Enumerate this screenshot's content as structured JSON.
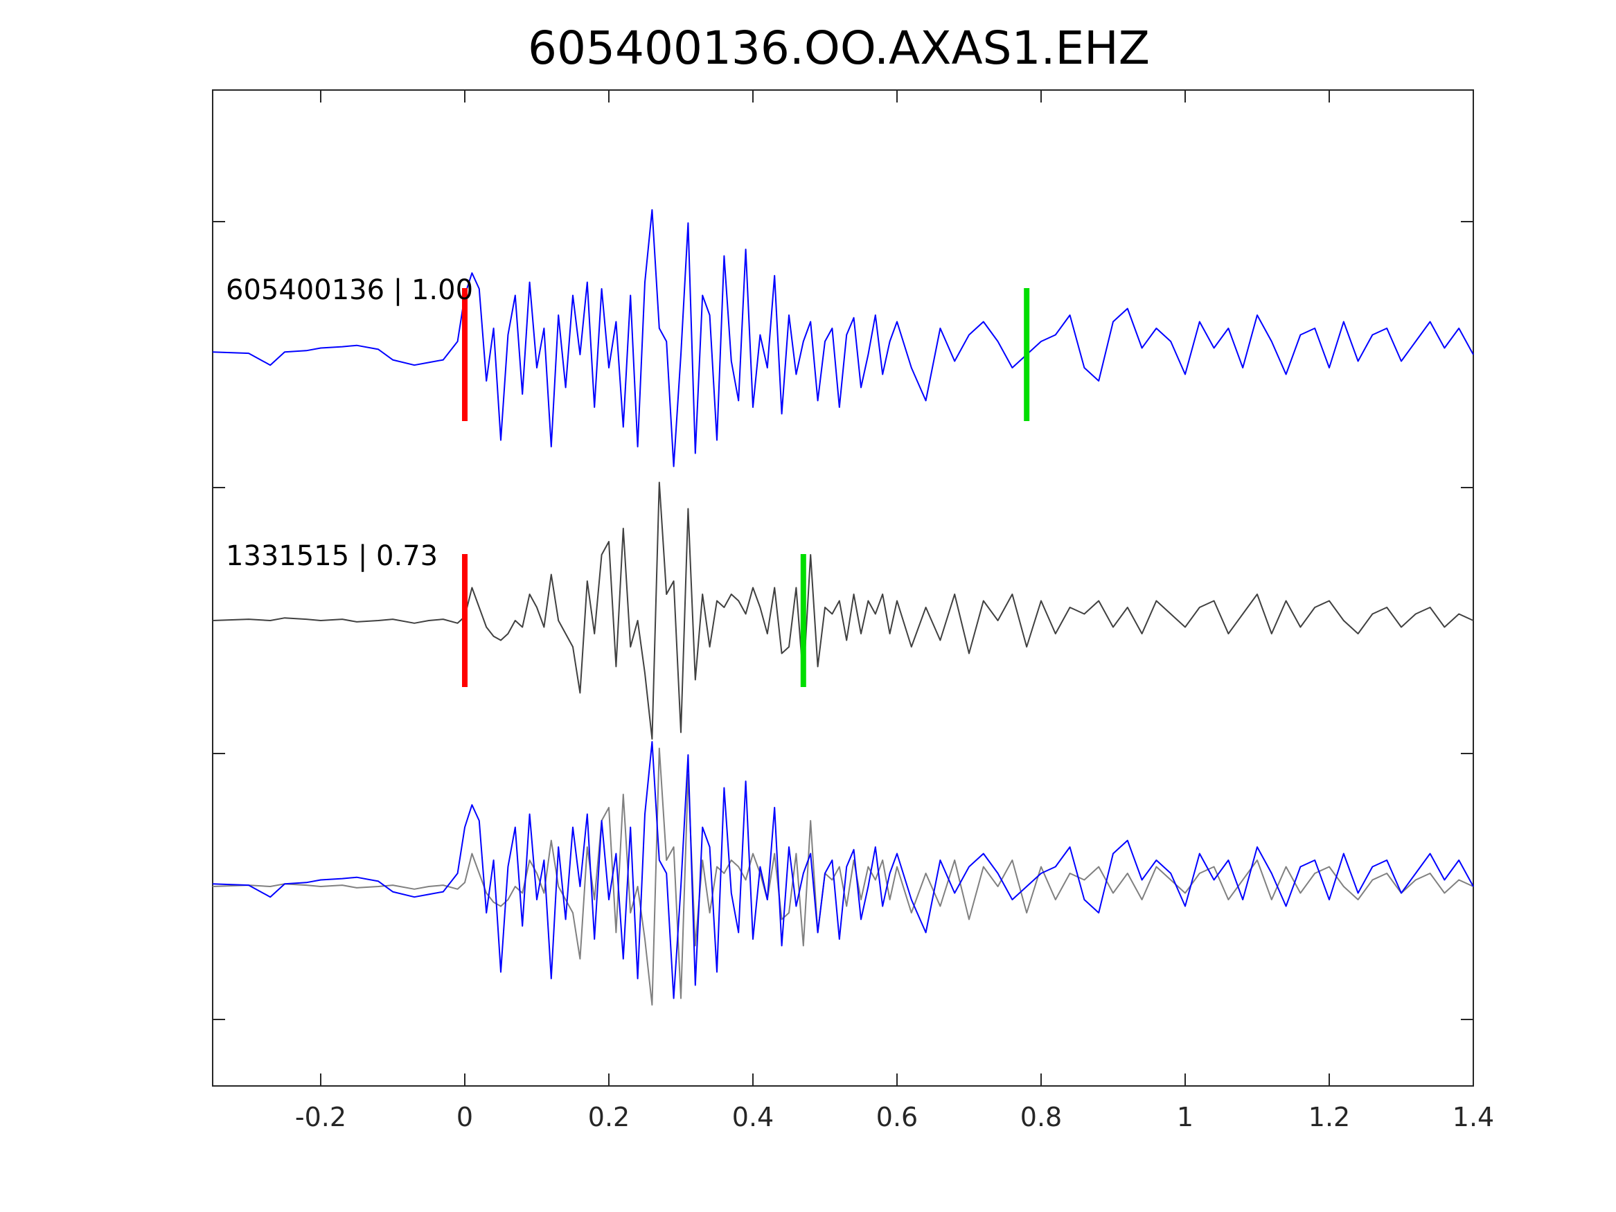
{
  "chart_data": {
    "type": "line",
    "title": "605400136.OO.AXAS1.EHZ",
    "xlabel": "",
    "ylabel": "",
    "xlim": [
      -0.35,
      1.4
    ],
    "xticks": [
      -0.2,
      0,
      0.2,
      0.4,
      0.6,
      0.8,
      1,
      1.2,
      1.4
    ],
    "xticklabels": [
      "-0.2",
      "0",
      "0.2",
      "0.4",
      "0.6",
      "0.8",
      "1",
      "1.2",
      "1.4"
    ],
    "grid": false,
    "colors": {
      "template": "#0000ff",
      "match": "#404040",
      "overlay_match": "#808080",
      "p_pick": "#ff0000",
      "s_pick": "#00dd00"
    },
    "traces": [
      {
        "name": "605400136 | 1.00",
        "color": "#0000ff",
        "p_pick": 0.0,
        "s_pick": 0.78,
        "x": [
          -0.35,
          -0.3,
          -0.27,
          -0.25,
          -0.22,
          -0.2,
          -0.17,
          -0.15,
          -0.12,
          -0.1,
          -0.07,
          -0.05,
          -0.03,
          -0.01,
          0.0,
          0.01,
          0.02,
          0.03,
          0.04,
          0.05,
          0.06,
          0.07,
          0.08,
          0.09,
          0.1,
          0.11,
          0.12,
          0.13,
          0.14,
          0.15,
          0.16,
          0.17,
          0.18,
          0.19,
          0.2,
          0.21,
          0.22,
          0.23,
          0.24,
          0.25,
          0.26,
          0.27,
          0.28,
          0.29,
          0.3,
          0.31,
          0.32,
          0.33,
          0.34,
          0.35,
          0.36,
          0.37,
          0.38,
          0.39,
          0.4,
          0.41,
          0.42,
          0.43,
          0.44,
          0.45,
          0.46,
          0.47,
          0.48,
          0.49,
          0.5,
          0.51,
          0.52,
          0.53,
          0.54,
          0.55,
          0.56,
          0.57,
          0.58,
          0.59,
          0.6,
          0.62,
          0.64,
          0.66,
          0.68,
          0.7,
          0.72,
          0.74,
          0.76,
          0.78,
          0.8,
          0.82,
          0.84,
          0.86,
          0.88,
          0.9,
          0.92,
          0.94,
          0.96,
          0.98,
          1.0,
          1.02,
          1.04,
          1.06,
          1.08,
          1.1,
          1.12,
          1.14,
          1.16,
          1.18,
          1.2,
          1.22,
          1.24,
          1.26,
          1.28,
          1.3,
          1.32,
          1.34,
          1.36,
          1.38,
          1.4
        ],
        "y": [
          0.02,
          0.01,
          -0.08,
          0.02,
          0.03,
          0.05,
          0.06,
          0.07,
          0.04,
          -0.04,
          -0.08,
          -0.06,
          -0.04,
          0.1,
          0.45,
          0.62,
          0.5,
          -0.2,
          0.2,
          -0.65,
          0.15,
          0.45,
          -0.3,
          0.55,
          -0.1,
          0.2,
          -0.7,
          0.3,
          -0.25,
          0.45,
          0.0,
          0.55,
          -0.4,
          0.5,
          -0.1,
          0.25,
          -0.55,
          0.45,
          -0.7,
          0.55,
          1.1,
          0.2,
          0.1,
          -0.85,
          0.0,
          1.0,
          -0.75,
          0.45,
          0.3,
          -0.65,
          0.75,
          -0.05,
          -0.35,
          0.8,
          -0.4,
          0.15,
          -0.1,
          0.6,
          -0.45,
          0.3,
          -0.15,
          0.1,
          0.25,
          -0.35,
          0.1,
          0.2,
          -0.4,
          0.15,
          0.28,
          -0.25,
          0.0,
          0.3,
          -0.15,
          0.1,
          0.25,
          -0.1,
          -0.35,
          0.2,
          -0.05,
          0.15,
          0.25,
          0.1,
          -0.1,
          0.0,
          0.1,
          0.15,
          0.3,
          -0.1,
          -0.2,
          0.25,
          0.35,
          0.05,
          0.2,
          0.1,
          -0.15,
          0.25,
          0.05,
          0.2,
          -0.1,
          0.3,
          0.1,
          -0.15,
          0.15,
          0.2,
          -0.1,
          0.25,
          -0.05,
          0.15,
          0.2,
          -0.05,
          0.1,
          0.25,
          0.05,
          0.2,
          0.0
        ]
      },
      {
        "name": "1331515 | 0.73",
        "color": "#404040",
        "p_pick": 0.0,
        "s_pick": 0.47,
        "x": [
          -0.35,
          -0.3,
          -0.27,
          -0.25,
          -0.22,
          -0.2,
          -0.17,
          -0.15,
          -0.12,
          -0.1,
          -0.07,
          -0.05,
          -0.03,
          -0.01,
          0.0,
          0.01,
          0.02,
          0.03,
          0.04,
          0.05,
          0.06,
          0.07,
          0.08,
          0.09,
          0.1,
          0.11,
          0.12,
          0.13,
          0.14,
          0.15,
          0.16,
          0.17,
          0.18,
          0.19,
          0.2,
          0.21,
          0.22,
          0.23,
          0.24,
          0.25,
          0.26,
          0.27,
          0.28,
          0.29,
          0.3,
          0.31,
          0.32,
          0.33,
          0.34,
          0.35,
          0.36,
          0.37,
          0.38,
          0.39,
          0.4,
          0.41,
          0.42,
          0.43,
          0.44,
          0.45,
          0.46,
          0.47,
          0.48,
          0.49,
          0.5,
          0.51,
          0.52,
          0.53,
          0.54,
          0.55,
          0.56,
          0.57,
          0.58,
          0.59,
          0.6,
          0.62,
          0.64,
          0.66,
          0.68,
          0.7,
          0.72,
          0.74,
          0.76,
          0.78,
          0.8,
          0.82,
          0.84,
          0.86,
          0.88,
          0.9,
          0.92,
          0.94,
          0.96,
          0.98,
          1.0,
          1.02,
          1.04,
          1.06,
          1.08,
          1.1,
          1.12,
          1.14,
          1.16,
          1.18,
          1.2,
          1.22,
          1.24,
          1.26,
          1.28,
          1.3,
          1.32,
          1.34,
          1.36,
          1.38,
          1.4
        ],
        "y": [
          0.0,
          0.01,
          0.0,
          0.02,
          0.01,
          0.0,
          0.01,
          -0.01,
          0.0,
          0.01,
          -0.02,
          0.0,
          0.01,
          -0.02,
          0.03,
          0.25,
          0.1,
          -0.05,
          -0.12,
          -0.15,
          -0.1,
          0.0,
          -0.05,
          0.2,
          0.1,
          -0.05,
          0.35,
          0.0,
          -0.1,
          -0.2,
          -0.55,
          0.3,
          -0.1,
          0.5,
          0.6,
          -0.35,
          0.7,
          -0.2,
          0.0,
          -0.4,
          -0.9,
          1.05,
          0.2,
          0.3,
          -0.85,
          0.85,
          -0.45,
          0.2,
          -0.2,
          0.15,
          0.1,
          0.2,
          0.15,
          0.05,
          0.25,
          0.1,
          -0.1,
          0.25,
          -0.25,
          -0.2,
          0.25,
          -0.45,
          0.5,
          -0.35,
          0.1,
          0.05,
          0.15,
          -0.15,
          0.2,
          -0.1,
          0.15,
          0.05,
          0.2,
          -0.1,
          0.15,
          -0.2,
          0.1,
          -0.15,
          0.2,
          -0.25,
          0.15,
          0.0,
          0.2,
          -0.2,
          0.15,
          -0.1,
          0.1,
          0.05,
          0.15,
          -0.05,
          0.1,
          -0.1,
          0.15,
          0.05,
          -0.05,
          0.1,
          0.15,
          -0.1,
          0.05,
          0.2,
          -0.1,
          0.15,
          -0.05,
          0.1,
          0.15,
          0.0,
          -0.1,
          0.05,
          0.1,
          -0.05,
          0.05,
          0.1,
          -0.05,
          0.05,
          0.0
        ]
      }
    ],
    "overlay": {
      "description_series": [
        "605400136 | 1.00",
        "1331515 | 0.73"
      ]
    }
  }
}
